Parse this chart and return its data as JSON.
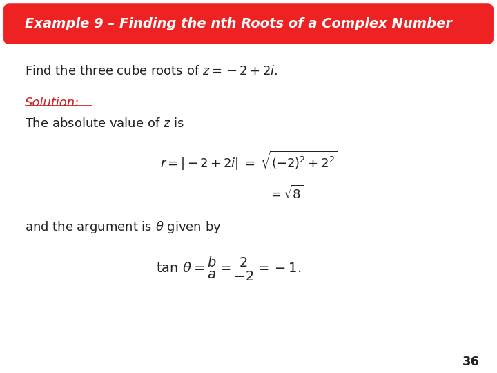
{
  "title": "Example 9 – Finding the nth Roots of a Complex Number",
  "title_bg_color": "#ee2222",
  "title_text_color": "#ffffff",
  "bg_color": "#ffffff",
  "body_text_color": "#222222",
  "solution_color": "#cc2222",
  "page_number": "36",
  "line1": "Find the three cube roots of $z = -2 + 2i$.",
  "solution_label": "Solution:",
  "line2": "The absolute value of $z$ is",
  "formula1": "$r = |-2 + 2i| \\;=\\; \\sqrt{(-2)^2 + 2^2}$",
  "formula2": "$= \\sqrt{8}$",
  "line3": "and the argument is $\\theta$ given by",
  "formula3": "$\\tan\\,\\theta = \\dfrac{b}{a} = \\dfrac{2}{-2} = -1.$"
}
